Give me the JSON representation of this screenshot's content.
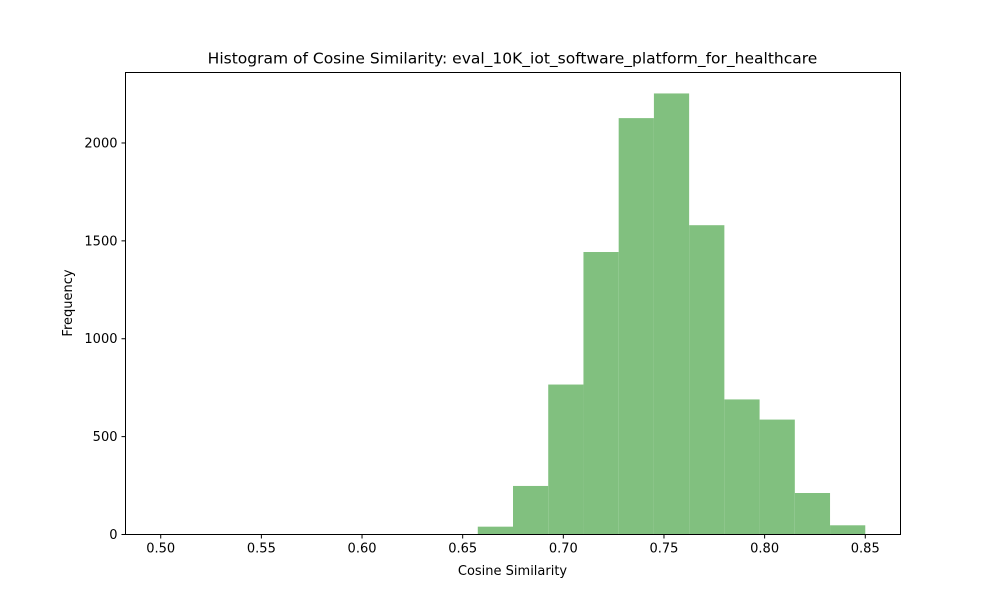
{
  "chart_data": {
    "type": "histogram",
    "title": "Histogram of Cosine Similarity: eval_10K_iot_software_platform_for_healthcare",
    "xlabel": "Cosine Similarity",
    "ylabel": "Frequency",
    "xlim": [
      0.4825,
      0.8675
    ],
    "ylim": [
      0,
      2360
    ],
    "bar_color": "#81c07f",
    "bin_width": 0.0175,
    "bins": [
      {
        "start": 0.5,
        "end": 0.5175,
        "count": 0
      },
      {
        "start": 0.5175,
        "end": 0.535,
        "count": 0
      },
      {
        "start": 0.535,
        "end": 0.5525,
        "count": 0
      },
      {
        "start": 0.5525,
        "end": 0.57,
        "count": 0
      },
      {
        "start": 0.57,
        "end": 0.5875,
        "count": 0
      },
      {
        "start": 0.5875,
        "end": 0.605,
        "count": 0
      },
      {
        "start": 0.605,
        "end": 0.6225,
        "count": 0
      },
      {
        "start": 0.6225,
        "end": 0.64,
        "count": 0
      },
      {
        "start": 0.64,
        "end": 0.6575,
        "count": 0
      },
      {
        "start": 0.6575,
        "end": 0.675,
        "count": 40
      },
      {
        "start": 0.675,
        "end": 0.6925,
        "count": 248
      },
      {
        "start": 0.6925,
        "end": 0.71,
        "count": 766
      },
      {
        "start": 0.71,
        "end": 0.7275,
        "count": 1443
      },
      {
        "start": 0.7275,
        "end": 0.745,
        "count": 2127
      },
      {
        "start": 0.745,
        "end": 0.7625,
        "count": 2253
      },
      {
        "start": 0.7625,
        "end": 0.78,
        "count": 1580
      },
      {
        "start": 0.78,
        "end": 0.7975,
        "count": 690
      },
      {
        "start": 0.7975,
        "end": 0.815,
        "count": 587
      },
      {
        "start": 0.815,
        "end": 0.8325,
        "count": 212
      },
      {
        "start": 0.8325,
        "end": 0.85,
        "count": 47
      }
    ],
    "xticks": [
      {
        "value": 0.5,
        "label": "0.50"
      },
      {
        "value": 0.55,
        "label": "0.55"
      },
      {
        "value": 0.6,
        "label": "0.60"
      },
      {
        "value": 0.65,
        "label": "0.65"
      },
      {
        "value": 0.7,
        "label": "0.70"
      },
      {
        "value": 0.75,
        "label": "0.75"
      },
      {
        "value": 0.8,
        "label": "0.80"
      },
      {
        "value": 0.85,
        "label": "0.85"
      }
    ],
    "yticks": [
      {
        "value": 0,
        "label": "0"
      },
      {
        "value": 500,
        "label": "500"
      },
      {
        "value": 1000,
        "label": "1000"
      },
      {
        "value": 1500,
        "label": "1500"
      },
      {
        "value": 2000,
        "label": "2000"
      }
    ],
    "grid": false,
    "legend": "none"
  }
}
